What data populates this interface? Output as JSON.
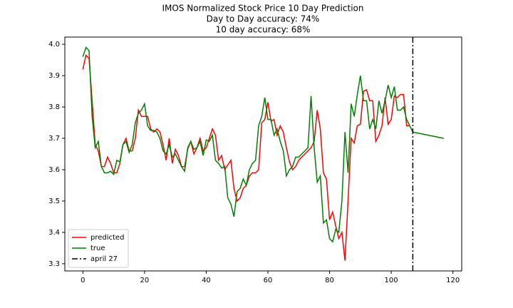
{
  "chart_data": {
    "type": "line",
    "title": "IMOS Normalized Stock Price 10 Day Prediction",
    "subtitle": [
      "Day to Day accuracy: 74%",
      "10 day accuracy: 68%"
    ],
    "x": [
      0,
      1,
      2,
      3,
      4,
      5,
      6,
      7,
      8,
      9,
      10,
      11,
      12,
      13,
      14,
      15,
      16,
      17,
      18,
      19,
      20,
      21,
      22,
      23,
      24,
      25,
      26,
      27,
      28,
      29,
      30,
      31,
      32,
      33,
      34,
      35,
      36,
      37,
      38,
      39,
      40,
      41,
      42,
      43,
      44,
      45,
      46,
      47,
      48,
      49,
      50,
      51,
      52,
      53,
      54,
      55,
      56,
      57,
      58,
      59,
      60,
      61,
      62,
      63,
      64,
      65,
      66,
      67,
      68,
      69,
      70,
      71,
      72,
      73,
      74,
      75,
      76,
      77,
      78,
      79,
      80,
      81,
      82,
      83,
      84,
      85,
      86,
      87,
      88,
      89,
      90,
      91,
      92,
      93,
      94,
      95,
      96,
      97,
      98,
      99,
      100,
      101,
      102,
      103,
      104,
      105,
      106,
      107,
      108,
      109,
      110,
      111,
      112,
      113,
      114,
      115,
      116,
      117
    ],
    "series": [
      {
        "name": "predicted",
        "color": "#ff0000",
        "values": [
          3.92,
          3.965,
          3.955,
          3.82,
          3.68,
          3.66,
          3.61,
          3.61,
          3.64,
          3.62,
          3.59,
          3.59,
          3.62,
          3.68,
          3.7,
          3.66,
          3.66,
          3.7,
          3.79,
          3.77,
          3.77,
          3.77,
          3.73,
          3.72,
          3.73,
          3.72,
          3.68,
          3.63,
          3.7,
          3.62,
          3.665,
          3.645,
          3.61,
          3.61,
          3.665,
          3.69,
          3.65,
          3.67,
          3.7,
          3.66,
          3.67,
          3.7,
          3.73,
          3.71,
          3.63,
          3.645,
          3.6,
          3.615,
          3.63,
          3.54,
          3.5,
          3.51,
          3.54,
          3.55,
          3.58,
          3.59,
          3.59,
          3.6,
          3.75,
          3.76,
          3.815,
          3.755,
          3.76,
          3.71,
          3.74,
          3.72,
          3.67,
          3.625,
          3.6,
          3.61,
          3.63,
          3.64,
          3.65,
          3.66,
          3.67,
          3.69,
          3.79,
          3.73,
          3.59,
          3.57,
          3.44,
          3.465,
          3.42,
          3.38,
          3.4,
          3.31,
          3.5,
          3.7,
          3.685,
          3.74,
          3.745,
          3.85,
          3.855,
          3.82,
          3.82,
          3.69,
          3.71,
          3.74,
          3.83,
          3.745,
          3.76,
          3.835,
          3.83,
          3.84,
          3.84,
          3.74,
          3.74,
          null,
          null,
          null,
          null,
          null,
          null,
          null,
          null,
          null,
          null,
          null
        ]
      },
      {
        "name": "true",
        "color": "#008000",
        "values": [
          3.96,
          3.99,
          3.98,
          3.77,
          3.67,
          3.69,
          3.61,
          3.59,
          3.59,
          3.595,
          3.585,
          3.63,
          3.625,
          3.68,
          3.69,
          3.655,
          3.68,
          3.75,
          3.78,
          3.79,
          3.81,
          3.74,
          3.725,
          3.725,
          3.72,
          3.7,
          3.66,
          3.65,
          3.68,
          3.64,
          3.65,
          3.63,
          3.61,
          3.595,
          3.67,
          3.69,
          3.665,
          3.67,
          3.69,
          3.645,
          3.695,
          3.69,
          3.71,
          3.63,
          3.62,
          3.605,
          3.61,
          3.51,
          3.49,
          3.45,
          3.53,
          3.54,
          3.57,
          3.55,
          3.6,
          3.62,
          3.63,
          3.74,
          3.77,
          3.83,
          3.76,
          3.76,
          3.71,
          3.73,
          3.69,
          3.66,
          3.58,
          3.6,
          3.61,
          3.64,
          3.64,
          3.65,
          3.66,
          3.67,
          3.835,
          3.67,
          3.56,
          3.58,
          3.43,
          3.44,
          3.38,
          3.37,
          3.41,
          3.4,
          3.5,
          3.72,
          3.59,
          3.81,
          3.77,
          3.84,
          3.9,
          3.82,
          3.82,
          3.73,
          3.76,
          3.73,
          3.82,
          3.78,
          3.82,
          3.87,
          3.83,
          3.865,
          3.79,
          3.79,
          3.8,
          3.76,
          3.74,
          3.72,
          3.718,
          3.716,
          3.714,
          3.712,
          3.71,
          3.708,
          3.706,
          3.704,
          3.702,
          3.7
        ]
      }
    ],
    "markers": [
      {
        "x": 107,
        "label": "april 27",
        "color": "#000000",
        "style": "dashdot"
      }
    ],
    "xlim": [
      -5.85,
      122.85
    ],
    "xticks": [
      0,
      20,
      40,
      60,
      80,
      100,
      120
    ],
    "ylim": [
      3.277,
      4.023
    ],
    "yticks": [
      3.3,
      3.4,
      3.5,
      3.6,
      3.7,
      3.8,
      3.9,
      {
        "value": 4,
        "label": "4.0"
      }
    ],
    "grid": false,
    "legend": "lower left"
  }
}
